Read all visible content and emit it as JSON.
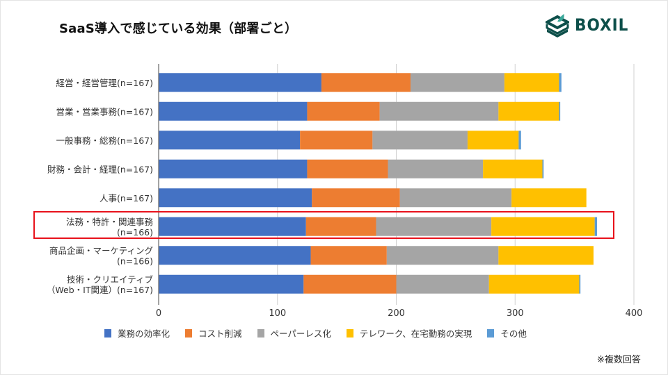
{
  "header": {
    "title": "SaaS導入で感じている効果（部署ごと）",
    "logo_text": "BOXIL",
    "logo_color": "#0d4f4a",
    "logo_icon": "stacked-box-logo-icon"
  },
  "footnote": "※複数回答",
  "highlight": {
    "category_index": 5,
    "color": "#e8111a"
  },
  "chart_data": {
    "type": "bar",
    "orientation": "horizontal",
    "stacked": true,
    "title": "SaaS導入で感じている効果（部署ごと）",
    "xlabel": "",
    "ylabel": "",
    "xlim": [
      0,
      400
    ],
    "xticks": [
      0,
      100,
      200,
      300,
      400
    ],
    "xtick_labels": [
      "0",
      "100",
      "200",
      "300",
      "400"
    ],
    "grid": true,
    "legend_position": "bottom",
    "categories": [
      [
        "経営・経営管理(n=167)"
      ],
      [
        "営業・営業事務(n=167)"
      ],
      [
        "一般事務・総務(n=167)"
      ],
      [
        "財務・会計・経理(n=167)"
      ],
      [
        "人事(n=167)"
      ],
      [
        "法務・特許・関連事務",
        "(n=166)"
      ],
      [
        "商品企画・マーケティング",
        "(n=166)"
      ],
      [
        "技術・クリエイティブ",
        "（Web・IT関連）(n=167)"
      ]
    ],
    "series": [
      {
        "name": "業務の効率化",
        "color": "#4472c4",
        "values": [
          137,
          125,
          119,
          125,
          129,
          124,
          128,
          122
        ]
      },
      {
        "name": "コスト削減",
        "color": "#ed7d31",
        "values": [
          75,
          61,
          61,
          68,
          74,
          59,
          64,
          78
        ]
      },
      {
        "name": "ペーパーレス化",
        "color": "#a5a5a5",
        "values": [
          79,
          100,
          80,
          80,
          94,
          97,
          94,
          78
        ]
      },
      {
        "name": "テレワーク、在宅勤務の実現",
        "color": "#ffc000",
        "values": [
          46,
          51,
          43,
          50,
          63,
          87,
          80,
          76
        ]
      },
      {
        "name": "その他",
        "color": "#5b9bd5",
        "values": [
          2,
          1,
          2,
          1,
          0,
          2,
          0,
          1
        ]
      }
    ]
  }
}
